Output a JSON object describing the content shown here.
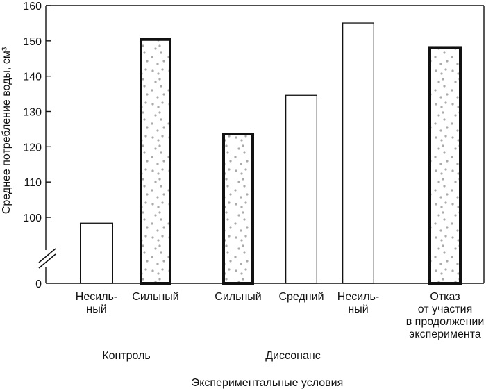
{
  "chart_data": {
    "type": "bar",
    "title": "",
    "ylabel": "Среднее потребление воды, см³",
    "xlabel": "Экспериментальные условия",
    "ylim": [
      90,
      160
    ],
    "axis_break": true,
    "zero_label": "0",
    "yticks": [
      100,
      110,
      120,
      130,
      140,
      150,
      160
    ],
    "groups": [
      {
        "name": "Контроль",
        "span": [
          0,
          1
        ]
      },
      {
        "name": "Диссонанс",
        "span": [
          2,
          5
        ]
      }
    ],
    "bars": [
      {
        "label": [
          "Несиль-",
          "ный"
        ],
        "value": 98.5,
        "style": "plain"
      },
      {
        "label": [
          "Сильный"
        ],
        "value": 150.8,
        "style": "textured"
      },
      {
        "label": [
          "Сильный"
        ],
        "value": 124,
        "style": "textured"
      },
      {
        "label": [
          "Средний"
        ],
        "value": 134.7,
        "style": "plain"
      },
      {
        "label": [
          "Несиль-",
          "ный"
        ],
        "value": 155.2,
        "style": "plain"
      },
      {
        "label": [
          "Отказ",
          "от участия",
          "в продолжении",
          "эксперимента"
        ],
        "value": 148.5,
        "style": "textured"
      }
    ],
    "colors": {
      "bar_fill": "#ffffff",
      "texture": "#aaaaaa",
      "stroke": "#111111"
    }
  }
}
